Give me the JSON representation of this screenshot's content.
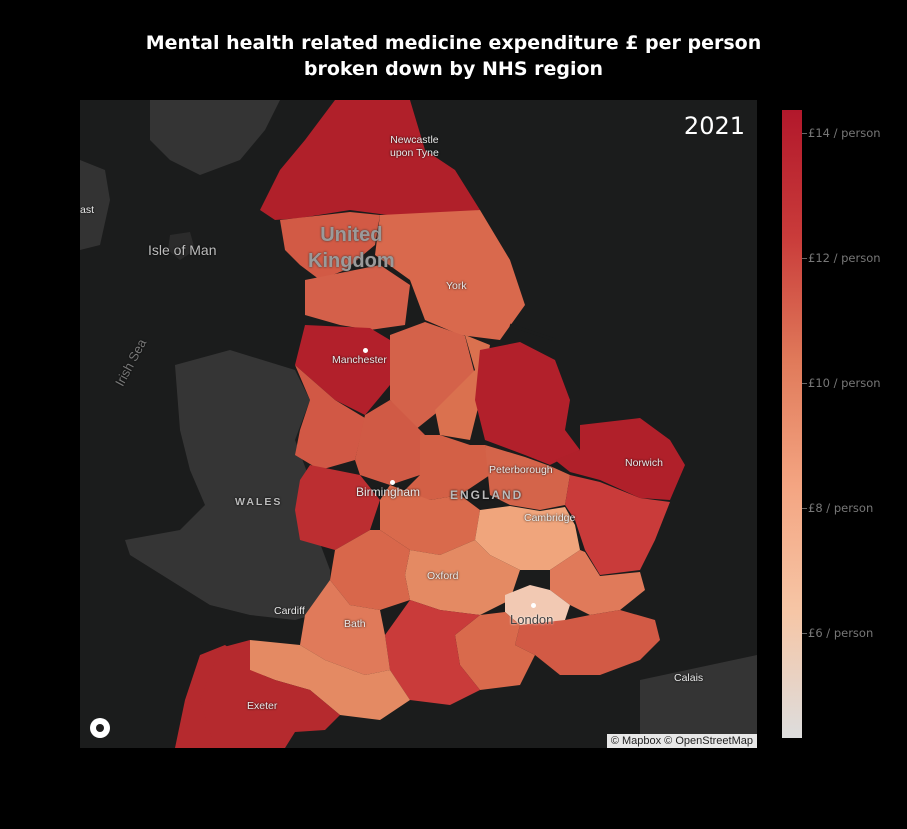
{
  "title_line1": "Mental health related medicine expenditure £ per person",
  "title_line2": "broken down by NHS region",
  "year": "2021",
  "attribution": "© Mapbox © OpenStreetMap",
  "map_labels": {
    "newcastle_line1": "Newcastle",
    "newcastle_line2": "upon Tyne",
    "east": "ast",
    "isle_of_man": "Isle of Man",
    "uk_line1": "United",
    "uk_line2": "Kingdom",
    "york": "York",
    "irish_sea": "Irish Sea",
    "manchester": "Manchester",
    "norwich": "Norwich",
    "peterborough": "Peterborough",
    "birmingham": "Birmingham",
    "england": "ENGLAND",
    "wales": "WALES",
    "cambridge": "Cambridge",
    "oxford": "Oxford",
    "cardiff": "Cardiff",
    "bath": "Bath",
    "london": "London",
    "calais": "Calais",
    "exeter": "Exeter"
  },
  "colorbar": {
    "colors": [
      "#b2182b",
      "#c93b3a",
      "#e07a5a",
      "#f4a582",
      "#f6c6a6",
      "#dddddd"
    ],
    "ticks": [
      {
        "value": 14,
        "label": "£14 / person"
      },
      {
        "value": 12,
        "label": "£12 / person"
      },
      {
        "value": 10,
        "label": "£10 / person"
      },
      {
        "value": 8,
        "label": "£8 / person"
      },
      {
        "value": 6,
        "label": "£6 / person"
      }
    ]
  }
}
